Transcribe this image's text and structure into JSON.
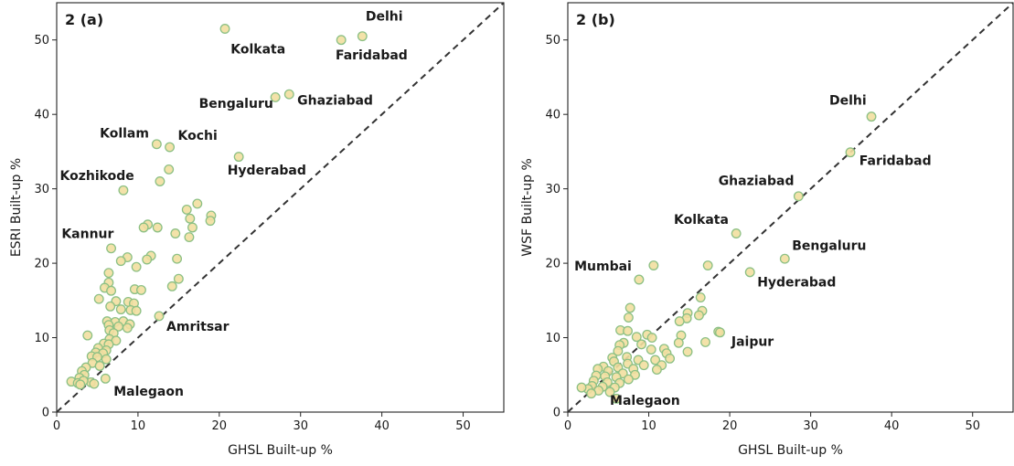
{
  "chart_data": [
    {
      "type": "scatter",
      "panel_label": "2 (a)",
      "xlabel": "GHSL Built-up %",
      "ylabel": "ESRI Built-up %",
      "xlim": [
        0,
        55
      ],
      "ylim": [
        0,
        55
      ],
      "xticks": [
        0,
        10,
        20,
        30,
        40,
        50
      ],
      "yticks": [
        0,
        10,
        20,
        30,
        40,
        50
      ],
      "grid": false,
      "reference_line": "y = x (dashed)",
      "marker_fill": "#f2dfa0",
      "marker_edge": "#8cc084",
      "points": [
        [
          20.7,
          51.5
        ],
        [
          35.0,
          50.0
        ],
        [
          37.6,
          50.5
        ],
        [
          26.9,
          42.3
        ],
        [
          28.6,
          42.7
        ],
        [
          12.3,
          36.0
        ],
        [
          13.9,
          35.6
        ],
        [
          22.4,
          34.3
        ],
        [
          13.8,
          32.6
        ],
        [
          12.7,
          31.0
        ],
        [
          8.2,
          29.8
        ],
        [
          17.3,
          28.0
        ],
        [
          19.0,
          26.4
        ],
        [
          16.0,
          27.2
        ],
        [
          16.4,
          26.0
        ],
        [
          18.9,
          25.7
        ],
        [
          11.2,
          25.2
        ],
        [
          10.7,
          24.8
        ],
        [
          12.4,
          24.8
        ],
        [
          16.7,
          24.8
        ],
        [
          14.6,
          24.0
        ],
        [
          16.3,
          23.5
        ],
        [
          6.7,
          22.0
        ],
        [
          8.7,
          20.8
        ],
        [
          7.9,
          20.3
        ],
        [
          11.6,
          21.0
        ],
        [
          11.1,
          20.5
        ],
        [
          14.8,
          20.6
        ],
        [
          9.8,
          19.5
        ],
        [
          6.4,
          18.7
        ],
        [
          15.0,
          17.9
        ],
        [
          6.4,
          17.4
        ],
        [
          5.9,
          16.7
        ],
        [
          6.7,
          16.3
        ],
        [
          9.6,
          16.5
        ],
        [
          10.4,
          16.4
        ],
        [
          14.2,
          16.9
        ],
        [
          5.2,
          15.2
        ],
        [
          7.3,
          14.9
        ],
        [
          8.8,
          14.8
        ],
        [
          9.5,
          14.6
        ],
        [
          6.6,
          14.2
        ],
        [
          7.9,
          13.8
        ],
        [
          9.1,
          13.7
        ],
        [
          9.8,
          13.6
        ],
        [
          12.6,
          12.9
        ],
        [
          6.2,
          12.2
        ],
        [
          7.2,
          12.1
        ],
        [
          8.2,
          12.2
        ],
        [
          9.0,
          11.8
        ],
        [
          6.4,
          11.7
        ],
        [
          7.6,
          11.5
        ],
        [
          8.7,
          11.3
        ],
        [
          6.5,
          11.0
        ],
        [
          7.0,
          10.6
        ],
        [
          3.8,
          10.3
        ],
        [
          6.5,
          9.8
        ],
        [
          7.3,
          9.6
        ],
        [
          5.8,
          9.2
        ],
        [
          6.4,
          9.1
        ],
        [
          5.1,
          8.6
        ],
        [
          6.1,
          8.3
        ],
        [
          4.8,
          8.0
        ],
        [
          5.7,
          7.9
        ],
        [
          4.3,
          7.5
        ],
        [
          5.0,
          7.4
        ],
        [
          6.1,
          7.1
        ],
        [
          4.4,
          6.6
        ],
        [
          3.6,
          6.0
        ],
        [
          5.3,
          6.2
        ],
        [
          3.1,
          5.5
        ],
        [
          3.4,
          5.0
        ],
        [
          2.8,
          4.6
        ],
        [
          6.0,
          4.5
        ],
        [
          1.8,
          4.1
        ],
        [
          2.6,
          3.9
        ],
        [
          4.2,
          4.0
        ],
        [
          3.3,
          4.2
        ],
        [
          2.9,
          3.7
        ],
        [
          4.6,
          3.8
        ]
      ],
      "annotations": [
        {
          "text": "Delhi",
          "x": 38.0,
          "y": 52.6
        },
        {
          "text": "Kolkata",
          "x": 21.4,
          "y": 48.2
        },
        {
          "text": "Faridabad",
          "x": 34.3,
          "y": 47.4
        },
        {
          "text": "Bengaluru",
          "x": 17.5,
          "y": 40.9
        },
        {
          "text": "Ghaziabad",
          "x": 29.6,
          "y": 41.3
        },
        {
          "text": "Kollam",
          "x": 5.3,
          "y": 36.9
        },
        {
          "text": "Kochi",
          "x": 14.9,
          "y": 36.6
        },
        {
          "text": "Kozhikode",
          "x": 0.4,
          "y": 31.2
        },
        {
          "text": "Hyderabad",
          "x": 21.0,
          "y": 31.9
        },
        {
          "text": "Kannur",
          "x": 0.6,
          "y": 23.4
        },
        {
          "text": "Amritsar",
          "x": 13.5,
          "y": 10.9
        },
        {
          "text": "Malegaon",
          "x": 7.0,
          "y": 2.2
        }
      ]
    },
    {
      "type": "scatter",
      "panel_label": "2 (b)",
      "xlabel": "GHSL Built-up %",
      "ylabel": "WSF Built-up %",
      "xlim": [
        0,
        55
      ],
      "ylim": [
        0,
        55
      ],
      "xticks": [
        0,
        10,
        20,
        30,
        40,
        50
      ],
      "yticks": [
        0,
        10,
        20,
        30,
        40,
        50
      ],
      "grid": false,
      "reference_line": "y = x (dashed)",
      "marker_fill": "#f2dfa0",
      "marker_edge": "#8cc084",
      "points": [
        [
          37.5,
          39.7
        ],
        [
          34.9,
          34.9
        ],
        [
          28.5,
          29.0
        ],
        [
          20.8,
          24.0
        ],
        [
          26.8,
          20.6
        ],
        [
          22.5,
          18.8
        ],
        [
          17.3,
          19.7
        ],
        [
          10.6,
          19.7
        ],
        [
          8.8,
          17.8
        ],
        [
          16.4,
          15.4
        ],
        [
          7.7,
          14.0
        ],
        [
          16.6,
          13.6
        ],
        [
          14.8,
          13.3
        ],
        [
          16.2,
          13.0
        ],
        [
          14.7,
          12.6
        ],
        [
          7.5,
          12.7
        ],
        [
          13.8,
          12.2
        ],
        [
          6.5,
          11.0
        ],
        [
          7.4,
          10.9
        ],
        [
          18.6,
          10.8
        ],
        [
          18.8,
          10.7
        ],
        [
          9.8,
          10.4
        ],
        [
          14.0,
          10.3
        ],
        [
          8.5,
          10.1
        ],
        [
          10.4,
          10.0
        ],
        [
          6.9,
          9.3
        ],
        [
          17.0,
          9.4
        ],
        [
          13.7,
          9.3
        ],
        [
          9.1,
          9.1
        ],
        [
          6.4,
          9.0
        ],
        [
          10.3,
          8.4
        ],
        [
          11.9,
          8.5
        ],
        [
          6.2,
          8.2
        ],
        [
          14.8,
          8.1
        ],
        [
          12.2,
          7.9
        ],
        [
          5.5,
          7.3
        ],
        [
          7.3,
          7.4
        ],
        [
          8.7,
          7.0
        ],
        [
          10.8,
          7.0
        ],
        [
          12.6,
          7.2
        ],
        [
          5.7,
          6.8
        ],
        [
          7.4,
          6.5
        ],
        [
          9.4,
          6.3
        ],
        [
          11.6,
          6.3
        ],
        [
          4.4,
          6.1
        ],
        [
          6.2,
          6.0
        ],
        [
          8.1,
          5.8
        ],
        [
          11.0,
          5.7
        ],
        [
          3.7,
          5.8
        ],
        [
          5.0,
          5.5
        ],
        [
          6.8,
          5.2
        ],
        [
          8.3,
          5.0
        ],
        [
          3.5,
          4.9
        ],
        [
          4.6,
          4.8
        ],
        [
          6.0,
          4.7
        ],
        [
          7.5,
          4.4
        ],
        [
          3.2,
          4.2
        ],
        [
          4.9,
          4.0
        ],
        [
          6.4,
          3.9
        ],
        [
          3.0,
          3.5
        ],
        [
          4.3,
          3.4
        ],
        [
          5.8,
          3.3
        ],
        [
          2.5,
          3.1
        ],
        [
          3.8,
          2.9
        ],
        [
          5.2,
          2.7
        ],
        [
          1.7,
          3.3
        ],
        [
          2.9,
          2.5
        ],
        [
          6.0,
          1.8
        ]
      ],
      "annotations": [
        {
          "text": "Delhi",
          "x": 32.3,
          "y": 41.3
        },
        {
          "text": "Faridabad",
          "x": 36.0,
          "y": 33.2
        },
        {
          "text": "Ghaziabad",
          "x": 18.6,
          "y": 30.5
        },
        {
          "text": "Kolkata",
          "x": 13.1,
          "y": 25.3
        },
        {
          "text": "Bengaluru",
          "x": 27.7,
          "y": 21.8
        },
        {
          "text": "Mumbai",
          "x": 0.8,
          "y": 19.0
        },
        {
          "text": "Hyderabad",
          "x": 23.4,
          "y": 16.9
        },
        {
          "text": "Jaipur",
          "x": 20.2,
          "y": 8.9
        },
        {
          "text": "Malegaon",
          "x": 5.2,
          "y": 1.0
        }
      ]
    }
  ]
}
